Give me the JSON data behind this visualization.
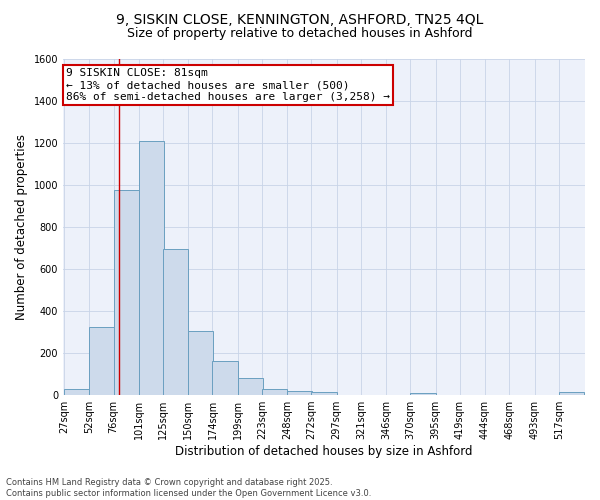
{
  "title_line1": "9, SISKIN CLOSE, KENNINGTON, ASHFORD, TN25 4QL",
  "title_line2": "Size of property relative to detached houses in Ashford",
  "xlabel": "Distribution of detached houses by size in Ashford",
  "ylabel": "Number of detached properties",
  "bins": [
    27,
    52,
    76,
    101,
    125,
    150,
    174,
    199,
    223,
    248,
    272,
    297,
    321,
    346,
    370,
    395,
    419,
    444,
    468,
    493,
    517
  ],
  "counts": [
    25,
    320,
    975,
    1210,
    695,
    305,
    160,
    78,
    28,
    18,
    12,
    0,
    0,
    0,
    8,
    0,
    0,
    0,
    0,
    0,
    12
  ],
  "bar_facecolor": "#cddaeb",
  "bar_edgecolor": "#6a9fc0",
  "bar_linewidth": 0.7,
  "grid_color": "#c8d4e8",
  "bg_color": "#edf1fa",
  "vline_x": 81,
  "vline_color": "#cc0000",
  "annotation_text": "9 SISKIN CLOSE: 81sqm\n← 13% of detached houses are smaller (500)\n86% of semi-detached houses are larger (3,258) →",
  "annotation_box_color": "#ffffff",
  "annotation_edge_color": "#cc0000",
  "ylim": [
    0,
    1600
  ],
  "yticks": [
    0,
    200,
    400,
    600,
    800,
    1000,
    1200,
    1400,
    1600
  ],
  "footnote": "Contains HM Land Registry data © Crown copyright and database right 2025.\nContains public sector information licensed under the Open Government Licence v3.0.",
  "title1_fontsize": 10,
  "title2_fontsize": 9,
  "tick_fontsize": 7,
  "ylabel_fontsize": 8.5,
  "xlabel_fontsize": 8.5,
  "annot_fontsize": 8,
  "footnote_fontsize": 6
}
